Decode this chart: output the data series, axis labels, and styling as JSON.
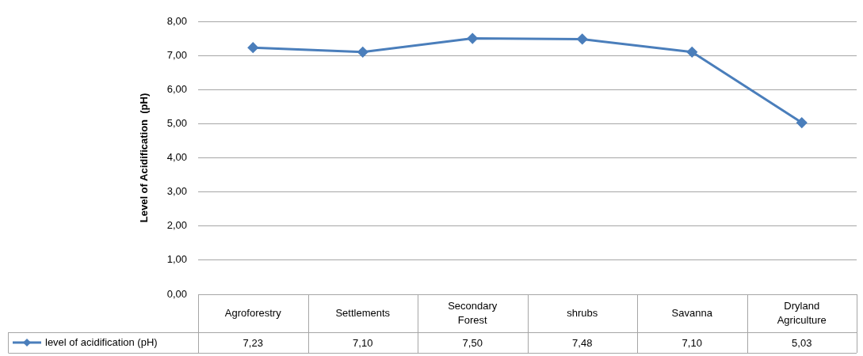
{
  "chart_data": {
    "type": "line",
    "ylabel": "Level of Acidification  (pH)",
    "categories": [
      "Agroforestry",
      "Settlements",
      "Secondary Forest",
      "shrubs",
      "Savanna",
      "Dryland Agriculture"
    ],
    "series": [
      {
        "name": "level of acidification (pH)",
        "color": "#4a7ebb",
        "values": [
          7.23,
          7.1,
          7.5,
          7.48,
          7.1,
          5.03
        ],
        "value_labels": [
          "7,23",
          "7,10",
          "7,50",
          "7,48",
          "7,10",
          "5,03"
        ]
      }
    ],
    "ylim": [
      0,
      8
    ],
    "yticks": [
      {
        "value": 0,
        "label": "0,00"
      },
      {
        "value": 1,
        "label": "1,00"
      },
      {
        "value": 2,
        "label": "2,00"
      },
      {
        "value": 3,
        "label": "3,00"
      },
      {
        "value": 4,
        "label": "4,00"
      },
      {
        "value": 5,
        "label": "5,00"
      },
      {
        "value": 6,
        "label": "6,00"
      },
      {
        "value": 7,
        "label": "7,00"
      },
      {
        "value": 8,
        "label": "8,00"
      }
    ],
    "grid": "y",
    "legend": "bottom left",
    "marker": "diamond",
    "line_style": "solid"
  }
}
